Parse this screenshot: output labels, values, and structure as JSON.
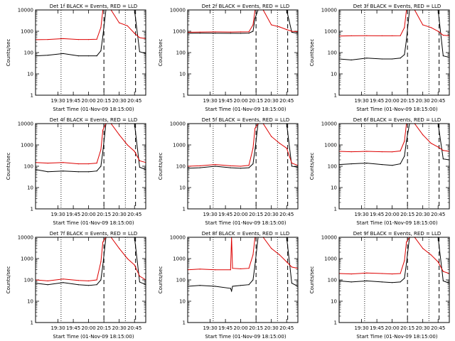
{
  "chart_data": [
    {
      "type": "line",
      "title": "Det 1f BLACK = Events, RED = LLD",
      "xlabel": "Start Time (01-Nov-09 18:15:00)",
      "ylabel": "Counts/sec",
      "y_scale": "log",
      "ylim": [
        1,
        10000
      ],
      "y_ticklabels": [
        "1",
        "10",
        "100",
        "1000",
        "10000"
      ],
      "x_ticklabels": [
        "19:30",
        "19:45",
        "20:00",
        "20:15",
        "20:30",
        "20:45"
      ],
      "x_range_time": [
        "19:08",
        "20:56"
      ],
      "markers": {
        "dotted_lines": [
          "19:33",
          "20:36"
        ],
        "dashed_lines": [
          "20:15",
          "20:46"
        ]
      },
      "series": [
        {
          "name": "BLACK",
          "color": "#000000",
          "x": [
            "19:08",
            "19:20",
            "19:35",
            "19:50",
            "20:00",
            "20:08",
            "20:12",
            "20:14",
            "20:17",
            "20:22",
            "20:30",
            "20:38",
            "20:45",
            "20:50",
            "20:56"
          ],
          "values": [
            70,
            75,
            90,
            70,
            70,
            70,
            120,
            600,
            10000,
            10000,
            10000,
            10000,
            10000,
            110,
            90
          ]
        },
        {
          "name": "RED",
          "color": "#dd0000",
          "x": [
            "19:08",
            "19:20",
            "19:35",
            "19:50",
            "20:00",
            "20:08",
            "20:12",
            "20:14",
            "20:17",
            "20:22",
            "20:30",
            "20:38",
            "20:45",
            "20:50",
            "20:56"
          ],
          "values": [
            400,
            410,
            450,
            410,
            410,
            420,
            1500,
            10000,
            10000,
            10000,
            2500,
            1800,
            800,
            500,
            450
          ]
        }
      ]
    },
    {
      "type": "line",
      "title": "Det 2f BLACK = Events, RED = LLD",
      "xlabel": "Start Time (01-Nov-09 18:15:00)",
      "ylabel": "Counts/sec",
      "y_scale": "log",
      "ylim": [
        1,
        10000
      ],
      "y_ticklabels": [
        "1",
        "10",
        "100",
        "1000",
        "10000"
      ],
      "x_ticklabels": [
        "19:30",
        "19:45",
        "20:00",
        "20:15",
        "20:30",
        "20:45"
      ],
      "x_range_time": [
        "19:08",
        "20:56"
      ],
      "markers": {
        "dotted_lines": [
          "19:33",
          "20:36"
        ],
        "dashed_lines": [
          "20:15",
          "20:46"
        ]
      },
      "series": [
        {
          "name": "BLACK",
          "color": "#000000",
          "x": [
            "19:08",
            "19:20",
            "19:35",
            "19:50",
            "20:00",
            "20:08",
            "20:12",
            "20:14",
            "20:17",
            "20:22",
            "20:30",
            "20:38",
            "20:45",
            "20:50",
            "20:56"
          ],
          "values": [
            800,
            820,
            810,
            800,
            800,
            820,
            1000,
            4000,
            10000,
            10000,
            10000,
            10000,
            10000,
            900,
            800
          ]
        },
        {
          "name": "RED",
          "color": "#dd0000",
          "x": [
            "19:08",
            "19:20",
            "19:35",
            "19:50",
            "20:00",
            "20:08",
            "20:12",
            "20:14",
            "20:17",
            "20:22",
            "20:30",
            "20:38",
            "20:45",
            "20:50",
            "20:56"
          ],
          "values": [
            900,
            920,
            930,
            920,
            930,
            950,
            2000,
            10000,
            10000,
            10000,
            2000,
            1600,
            1200,
            1000,
            950
          ]
        }
      ]
    },
    {
      "type": "line",
      "title": "Det 3f BLACK = Events, RED = LLD",
      "xlabel": "Start Time (01-Nov-09 18:15:00)",
      "ylabel": "Counts/sec",
      "y_scale": "log",
      "ylim": [
        1,
        10000
      ],
      "y_ticklabels": [
        "1",
        "10",
        "100",
        "1000",
        "10000"
      ],
      "x_ticklabels": [
        "19:30",
        "19:45",
        "20:00",
        "20:15",
        "20:30",
        "20:45"
      ],
      "x_range_time": [
        "19:08",
        "20:56"
      ],
      "markers": {
        "dotted_lines": [
          "19:33",
          "20:36"
        ],
        "dashed_lines": [
          "20:15",
          "20:46"
        ]
      },
      "series": [
        {
          "name": "BLACK",
          "color": "#000000",
          "x": [
            "19:08",
            "19:20",
            "19:35",
            "19:50",
            "20:00",
            "20:08",
            "20:12",
            "20:14",
            "20:17",
            "20:22",
            "20:30",
            "20:38",
            "20:45",
            "20:50",
            "20:56"
          ],
          "values": [
            50,
            45,
            55,
            50,
            50,
            55,
            80,
            400,
            10000,
            10000,
            10000,
            10000,
            10000,
            70,
            60
          ]
        },
        {
          "name": "RED",
          "color": "#dd0000",
          "x": [
            "19:08",
            "19:20",
            "19:35",
            "19:50",
            "20:00",
            "20:08",
            "20:12",
            "20:14",
            "20:17",
            "20:22",
            "20:30",
            "20:38",
            "20:45",
            "20:50",
            "20:56"
          ],
          "values": [
            600,
            610,
            620,
            610,
            610,
            620,
            1500,
            10000,
            10000,
            10000,
            2000,
            1500,
            1000,
            650,
            620
          ]
        }
      ]
    },
    {
      "type": "line",
      "title": "Det 4f BLACK = Events, RED = LLD",
      "xlabel": "Start Time (01-Nov-09 18:15:00)",
      "ylabel": "Counts/sec",
      "y_scale": "log",
      "ylim": [
        1,
        10000
      ],
      "y_ticklabels": [
        "1",
        "10",
        "100",
        "1000",
        "10000"
      ],
      "x_ticklabels": [
        "19:30",
        "19:45",
        "20:00",
        "20:15",
        "20:30",
        "20:45"
      ],
      "x_range_time": [
        "19:08",
        "20:56"
      ],
      "markers": {
        "dotted_lines": [
          "19:33",
          "20:36"
        ],
        "dashed_lines": [
          "20:15",
          "20:46"
        ]
      },
      "series": [
        {
          "name": "BLACK",
          "color": "#000000",
          "x": [
            "19:08",
            "19:20",
            "19:35",
            "19:50",
            "20:00",
            "20:08",
            "20:12",
            "20:14",
            "20:17",
            "20:22",
            "20:30",
            "20:38",
            "20:45",
            "20:50",
            "20:56"
          ],
          "values": [
            70,
            55,
            60,
            55,
            55,
            60,
            100,
            500,
            10000,
            10000,
            10000,
            10000,
            10000,
            90,
            70
          ]
        },
        {
          "name": "RED",
          "color": "#dd0000",
          "x": [
            "19:08",
            "19:20",
            "19:35",
            "19:50",
            "20:00",
            "20:08",
            "20:12",
            "20:14",
            "20:17",
            "20:22",
            "20:30",
            "20:38",
            "20:45",
            "20:50",
            "20:56"
          ],
          "values": [
            150,
            140,
            150,
            130,
            130,
            140,
            600,
            5000,
            10000,
            10000,
            3000,
            1000,
            500,
            180,
            150
          ]
        }
      ]
    },
    {
      "type": "line",
      "title": "Det 5f BLACK = Events, RED = LLD",
      "xlabel": "Start Time (01-Nov-09 18:15:00)",
      "ylabel": "Counts/sec",
      "y_scale": "log",
      "ylim": [
        1,
        10000
      ],
      "y_ticklabels": [
        "1",
        "10",
        "100",
        "1000",
        "10000"
      ],
      "x_ticklabels": [
        "19:30",
        "19:45",
        "20:00",
        "20:15",
        "20:30",
        "20:45"
      ],
      "x_range_time": [
        "19:08",
        "20:56"
      ],
      "markers": {
        "dotted_lines": [
          "19:33",
          "20:36"
        ],
        "dashed_lines": [
          "20:15",
          "20:46"
        ]
      },
      "series": [
        {
          "name": "BLACK",
          "color": "#000000",
          "x": [
            "19:08",
            "19:20",
            "19:35",
            "19:50",
            "20:00",
            "20:08",
            "20:12",
            "20:14",
            "20:17",
            "20:22",
            "20:30",
            "20:38",
            "20:45",
            "20:50",
            "20:56"
          ],
          "values": [
            80,
            85,
            100,
            85,
            80,
            85,
            130,
            600,
            10000,
            10000,
            10000,
            10000,
            10000,
            100,
            90
          ]
        },
        {
          "name": "RED",
          "color": "#dd0000",
          "x": [
            "19:08",
            "19:20",
            "19:35",
            "19:50",
            "20:00",
            "20:08",
            "20:12",
            "20:14",
            "20:17",
            "20:22",
            "20:30",
            "20:38",
            "20:45",
            "20:50",
            "20:56"
          ],
          "values": [
            100,
            105,
            120,
            105,
            100,
            110,
            700,
            6000,
            10000,
            10000,
            2500,
            1200,
            700,
            140,
            110
          ]
        }
      ]
    },
    {
      "type": "line",
      "title": "Det 6f BLACK = Events, RED = LLD",
      "xlabel": "Start Time (01-Nov-09 18:15:00)",
      "ylabel": "Counts/sec",
      "y_scale": "log",
      "ylim": [
        1,
        10000
      ],
      "y_ticklabels": [
        "1",
        "10",
        "100",
        "1000",
        "10000"
      ],
      "x_ticklabels": [
        "19:30",
        "19:45",
        "20:00",
        "20:15",
        "20:30",
        "20:45"
      ],
      "x_range_time": [
        "19:08",
        "20:56"
      ],
      "markers": {
        "dotted_lines": [
          "19:33",
          "20:36"
        ],
        "dashed_lines": [
          "20:15",
          "20:46"
        ]
      },
      "series": [
        {
          "name": "BLACK",
          "color": "#000000",
          "x": [
            "19:08",
            "19:20",
            "19:35",
            "19:50",
            "20:00",
            "20:08",
            "20:12",
            "20:14",
            "20:17",
            "20:22",
            "20:30",
            "20:38",
            "20:45",
            "20:50",
            "20:56"
          ],
          "values": [
            120,
            130,
            140,
            120,
            110,
            130,
            300,
            1500,
            10000,
            10000,
            10000,
            10000,
            10000,
            220,
            200
          ]
        },
        {
          "name": "RED",
          "color": "#dd0000",
          "x": [
            "19:08",
            "19:20",
            "19:35",
            "19:50",
            "20:00",
            "20:08",
            "20:12",
            "20:14",
            "20:17",
            "20:22",
            "20:30",
            "20:38",
            "20:45",
            "20:50",
            "20:56"
          ],
          "values": [
            500,
            480,
            500,
            480,
            470,
            520,
            1500,
            10000,
            10000,
            10000,
            3000,
            1200,
            800,
            550,
            500
          ]
        }
      ]
    },
    {
      "type": "line",
      "title": "Det 7f BLACK = Events, RED = LLD",
      "xlabel": "Start Time (01-Nov-09 18:15:00)",
      "ylabel": "Counts/sec",
      "y_scale": "log",
      "ylim": [
        1,
        10000
      ],
      "y_ticklabels": [
        "1",
        "10",
        "100",
        "1000",
        "10000"
      ],
      "x_ticklabels": [
        "19:30",
        "19:45",
        "20:00",
        "20:15",
        "20:30",
        "20:45"
      ],
      "x_range_time": [
        "19:08",
        "20:56"
      ],
      "markers": {
        "dotted_lines": [
          "19:33",
          "20:36"
        ],
        "dashed_lines": [
          "20:15",
          "20:46"
        ]
      },
      "series": [
        {
          "name": "BLACK",
          "color": "#000000",
          "x": [
            "19:08",
            "19:20",
            "19:35",
            "19:50",
            "20:00",
            "20:08",
            "20:12",
            "20:14",
            "20:17",
            "20:22",
            "20:30",
            "20:38",
            "20:45",
            "20:50",
            "20:56"
          ],
          "values": [
            70,
            60,
            75,
            60,
            55,
            60,
            100,
            500,
            10000,
            10000,
            10000,
            10000,
            10000,
            80,
            60
          ]
        },
        {
          "name": "RED",
          "color": "#dd0000",
          "x": [
            "19:08",
            "19:20",
            "19:35",
            "19:50",
            "20:00",
            "20:08",
            "20:12",
            "20:14",
            "20:17",
            "20:22",
            "20:30",
            "20:38",
            "20:45",
            "20:50",
            "20:56"
          ],
          "values": [
            100,
            90,
            110,
            95,
            90,
            100,
            700,
            6000,
            10000,
            10000,
            3000,
            1000,
            500,
            150,
            100
          ]
        }
      ]
    },
    {
      "type": "line",
      "title": "Det 8f BLACK = Events, RED = LLD",
      "xlabel": "Start Time (01-Nov-09 18:15:00)",
      "ylabel": "Counts/sec",
      "y_scale": "log",
      "ylim": [
        1,
        10000
      ],
      "y_ticklabels": [
        "1",
        "10",
        "100",
        "1000",
        "10000"
      ],
      "x_ticklabels": [
        "19:30",
        "19:45",
        "20:00",
        "20:15",
        "20:30",
        "20:45"
      ],
      "x_range_time": [
        "19:08",
        "20:56"
      ],
      "markers": {
        "dotted_lines": [
          "19:33",
          "20:36"
        ],
        "dashed_lines": [
          "20:15",
          "20:46"
        ]
      },
      "series": [
        {
          "name": "BLACK",
          "color": "#000000",
          "x": [
            "19:08",
            "19:20",
            "19:35",
            "19:50",
            "19:51",
            "19:52",
            "20:00",
            "20:08",
            "20:12",
            "20:14",
            "20:17",
            "20:22",
            "20:30",
            "20:38",
            "20:45",
            "20:50",
            "20:56"
          ],
          "values": [
            50,
            55,
            50,
            40,
            30,
            50,
            55,
            60,
            100,
            500,
            10000,
            10000,
            10000,
            10000,
            10000,
            70,
            50
          ]
        },
        {
          "name": "RED",
          "color": "#dd0000",
          "x": [
            "19:08",
            "19:20",
            "19:35",
            "19:50",
            "19:51",
            "19:52",
            "20:00",
            "20:08",
            "20:12",
            "20:14",
            "20:17",
            "20:22",
            "20:30",
            "20:38",
            "20:45",
            "20:50",
            "20:56"
          ],
          "values": [
            300,
            320,
            300,
            300,
            10000,
            350,
            330,
            350,
            1500,
            10000,
            10000,
            10000,
            3000,
            1500,
            700,
            400,
            350
          ]
        }
      ]
    },
    {
      "type": "line",
      "title": "Det 9f BLACK = Events, RED = LLD",
      "xlabel": "Start Time (01-Nov-09 18:15:00)",
      "ylabel": "Counts/sec",
      "y_scale": "log",
      "ylim": [
        1,
        10000
      ],
      "y_ticklabels": [
        "1",
        "10",
        "100",
        "1000",
        "10000"
      ],
      "x_ticklabels": [
        "19:30",
        "19:45",
        "20:00",
        "20:15",
        "20:30",
        "20:45"
      ],
      "x_range_time": [
        "19:08",
        "20:56"
      ],
      "markers": {
        "dotted_lines": [
          "19:33",
          "20:36"
        ],
        "dashed_lines": [
          "20:15",
          "20:46"
        ]
      },
      "series": [
        {
          "name": "BLACK",
          "color": "#000000",
          "x": [
            "19:08",
            "19:20",
            "19:35",
            "19:50",
            "20:00",
            "20:08",
            "20:12",
            "20:14",
            "20:17",
            "20:22",
            "20:30",
            "20:38",
            "20:45",
            "20:50",
            "20:56"
          ],
          "values": [
            90,
            80,
            90,
            80,
            75,
            80,
            120,
            600,
            10000,
            10000,
            10000,
            10000,
            10000,
            90,
            70
          ]
        },
        {
          "name": "RED",
          "color": "#dd0000",
          "x": [
            "19:08",
            "19:20",
            "19:35",
            "19:50",
            "20:00",
            "20:08",
            "20:12",
            "20:14",
            "20:17",
            "20:22",
            "20:30",
            "20:38",
            "20:45",
            "20:50",
            "20:56"
          ],
          "values": [
            200,
            190,
            210,
            200,
            190,
            200,
            800,
            6000,
            10000,
            10000,
            3000,
            1500,
            700,
            250,
            200
          ]
        }
      ]
    }
  ]
}
